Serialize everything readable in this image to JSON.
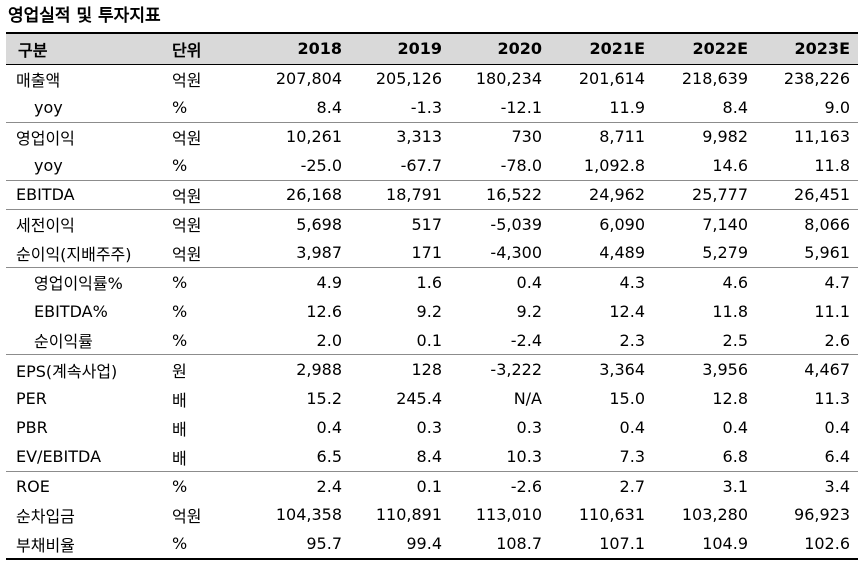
{
  "title": "영업실적 및 투자지표",
  "header": {
    "item": "구분",
    "unit": "단위",
    "years": [
      "2018",
      "2019",
      "2020",
      "2021E",
      "2022E",
      "2023E"
    ]
  },
  "rows": [
    {
      "label": "매출액",
      "unit": "억원",
      "values": [
        "207,804",
        "205,126",
        "180,234",
        "201,614",
        "218,639",
        "238,226"
      ]
    },
    {
      "label": "yoy",
      "unit": "%",
      "values": [
        "8.4",
        "-1.3",
        "-12.1",
        "11.9",
        "8.4",
        "9.0"
      ]
    },
    {
      "label": "영업이익",
      "unit": "억원",
      "values": [
        "10,261",
        "3,313",
        "730",
        "8,711",
        "9,982",
        "11,163"
      ]
    },
    {
      "label": "yoy",
      "unit": "%",
      "values": [
        "-25.0",
        "-67.7",
        "-78.0",
        "1,092.8",
        "14.6",
        "11.8"
      ]
    },
    {
      "label": "EBITDA",
      "unit": "억원",
      "values": [
        "26,168",
        "18,791",
        "16,522",
        "24,962",
        "25,777",
        "26,451"
      ]
    },
    {
      "label": "세전이익",
      "unit": "억원",
      "values": [
        "5,698",
        "517",
        "-5,039",
        "6,090",
        "7,140",
        "8,066"
      ]
    },
    {
      "label": "순이익(지배주주)",
      "unit": "억원",
      "values": [
        "3,987",
        "171",
        "-4,300",
        "4,489",
        "5,279",
        "5,961"
      ]
    },
    {
      "label": "영업이익률%",
      "unit": "%",
      "values": [
        "4.9",
        "1.6",
        "0.4",
        "4.3",
        "4.6",
        "4.7"
      ]
    },
    {
      "label": "EBITDA%",
      "unit": "%",
      "values": [
        "12.6",
        "9.2",
        "9.2",
        "12.4",
        "11.8",
        "11.1"
      ]
    },
    {
      "label": "순이익률",
      "unit": "%",
      "values": [
        "2.0",
        "0.1",
        "-2.4",
        "2.3",
        "2.5",
        "2.6"
      ]
    },
    {
      "label": "EPS(계속사업)",
      "unit": "원",
      "values": [
        "2,988",
        "128",
        "-3,222",
        "3,364",
        "3,956",
        "4,467"
      ]
    },
    {
      "label": "PER",
      "unit": "배",
      "values": [
        "15.2",
        "245.4",
        "N/A",
        "15.0",
        "12.8",
        "11.3"
      ]
    },
    {
      "label": "PBR",
      "unit": "배",
      "values": [
        "0.4",
        "0.3",
        "0.3",
        "0.4",
        "0.4",
        "0.4"
      ]
    },
    {
      "label": "EV/EBITDA",
      "unit": "배",
      "values": [
        "6.5",
        "8.4",
        "10.3",
        "7.3",
        "6.8",
        "6.4"
      ]
    },
    {
      "label": "ROE",
      "unit": "%",
      "values": [
        "2.4",
        "0.1",
        "-2.6",
        "2.7",
        "3.1",
        "3.4"
      ]
    },
    {
      "label": "순차입금",
      "unit": "억원",
      "values": [
        "104,358",
        "110,891",
        "113,010",
        "110,631",
        "103,280",
        "96,923"
      ]
    },
    {
      "label": "부채비율",
      "unit": "%",
      "values": [
        "95.7",
        "99.4",
        "108.7",
        "107.1",
        "104.9",
        "102.6"
      ]
    }
  ]
}
